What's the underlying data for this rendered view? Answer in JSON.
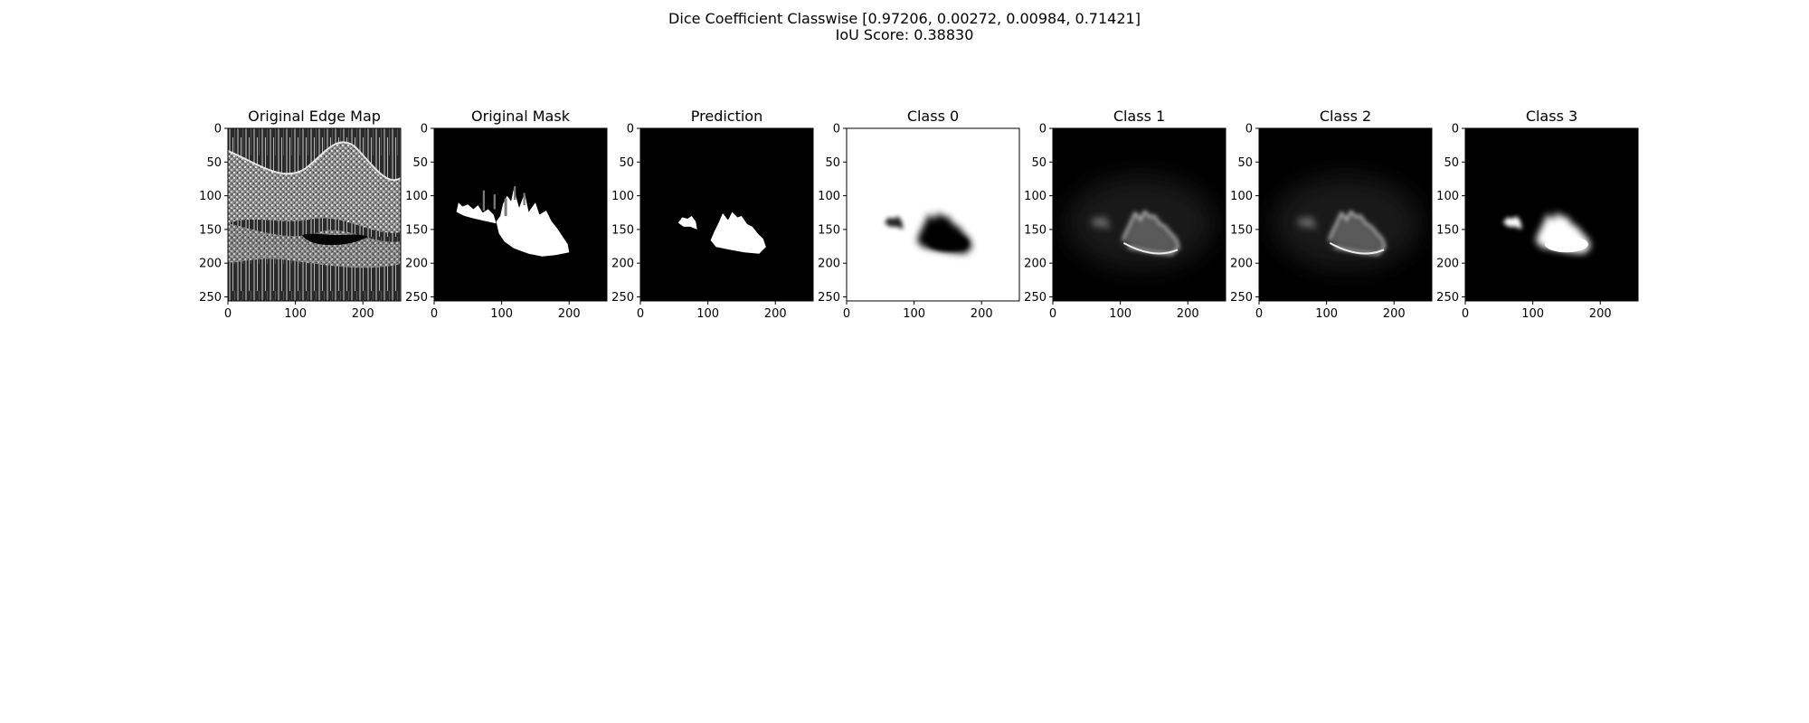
{
  "figure": {
    "title_line1": "Dice Coefficient Classwise [0.97206, 0.00272, 0.00984, 0.71421]",
    "title_line2": "IoU Score: 0.38830"
  },
  "chart_data": {
    "type": "heatmap",
    "title": "Dice Coefficient Classwise [0.97206, 0.00272, 0.00984, 0.71421]\nIoU Score: 0.38830",
    "dice_classwise": [
      0.97206,
      0.00272,
      0.00984,
      0.71421
    ],
    "iou_score": 0.3883,
    "xlim": [
      0,
      256
    ],
    "ylim": [
      256,
      0
    ],
    "xticks": [
      0,
      100,
      200
    ],
    "yticks": [
      0,
      50,
      100,
      150,
      200,
      250
    ],
    "grid": false,
    "colormap": "gray",
    "panels": [
      {
        "title": "Original Edge Map",
        "content": "edge"
      },
      {
        "title": "Original Mask",
        "content": "mask"
      },
      {
        "title": "Prediction",
        "content": "pred"
      },
      {
        "title": "Class 0",
        "content": "class0"
      },
      {
        "title": "Class 1",
        "content": "class1"
      },
      {
        "title": "Class 2",
        "content": "class2"
      },
      {
        "title": "Class 3",
        "content": "class3"
      }
    ]
  }
}
